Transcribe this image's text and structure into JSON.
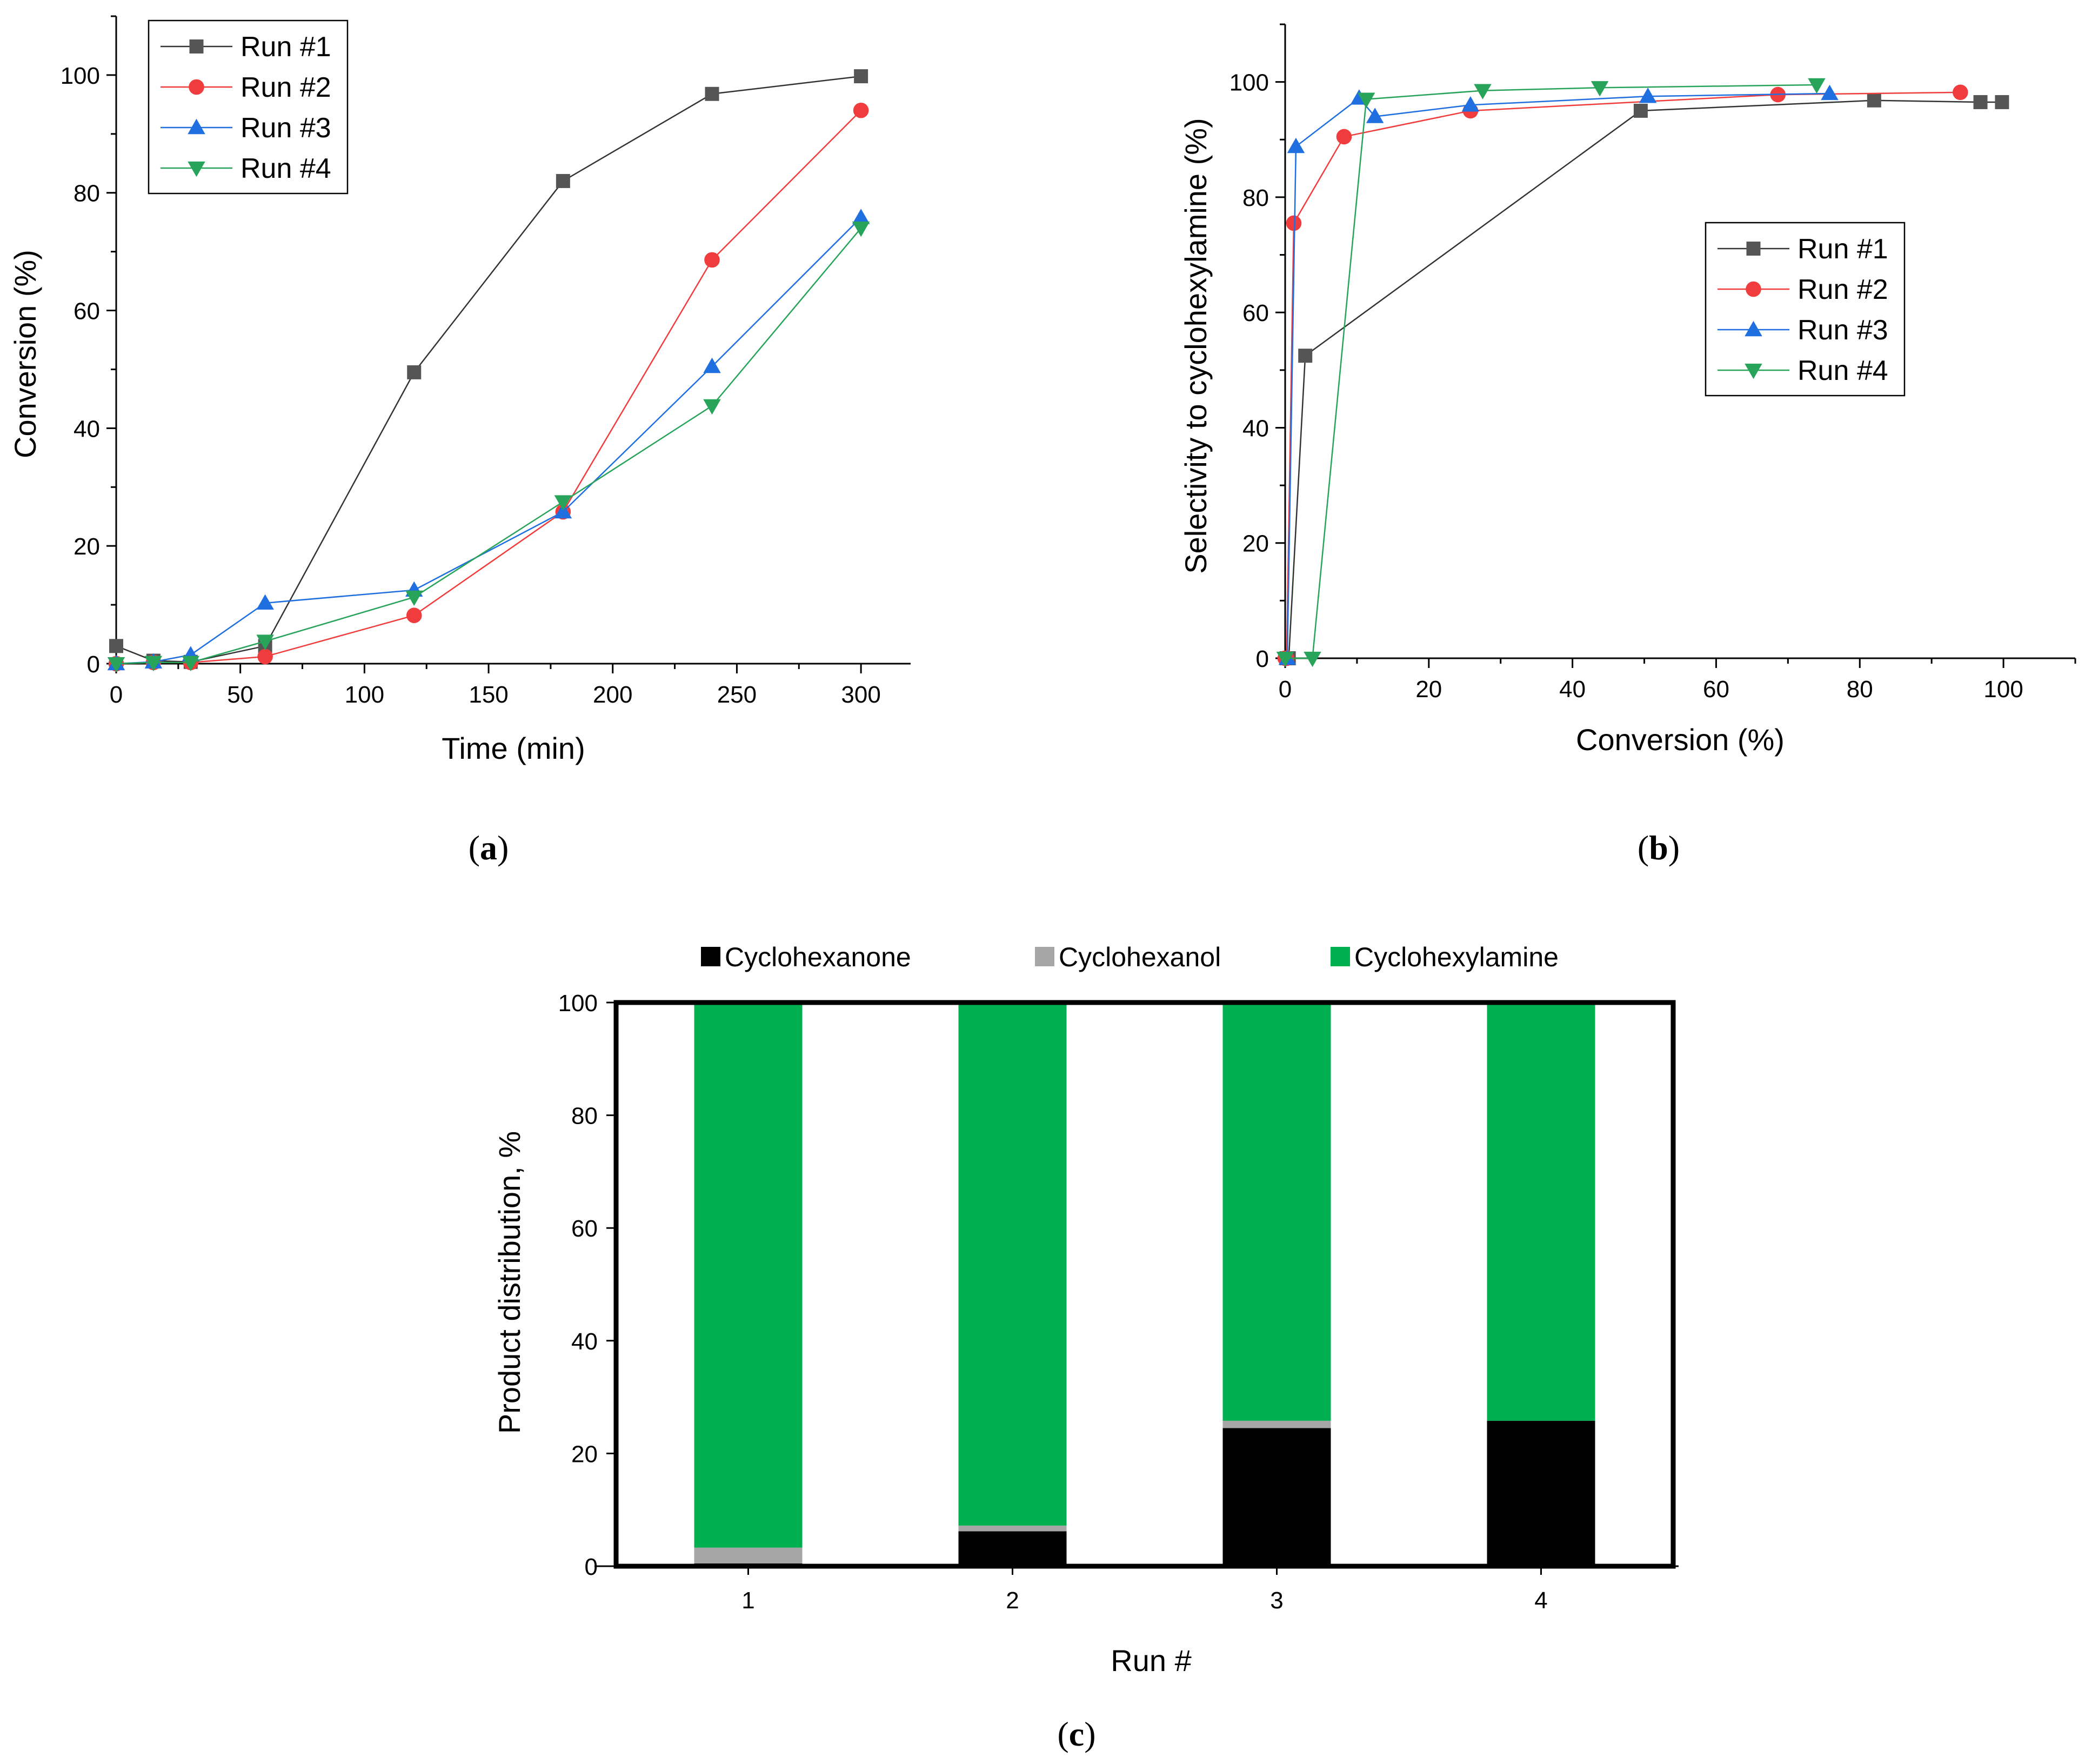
{
  "chart_data": [
    {
      "id": "a",
      "type": "line",
      "panel_label": "a",
      "xlabel": "Time (min)",
      "ylabel": "Conversion (%)",
      "xlim": [
        0,
        320
      ],
      "ylim": [
        0,
        110
      ],
      "xticks": [
        0,
        50,
        100,
        150,
        200,
        250,
        300
      ],
      "yticks": [
        0,
        20,
        40,
        60,
        80,
        100
      ],
      "legend_position": "top-left",
      "series": [
        {
          "name": "Run #1",
          "color": "#555555",
          "line": "#333333",
          "marker": "square",
          "x": [
            0,
            15,
            30,
            60,
            120,
            180,
            240,
            300
          ],
          "y": [
            3,
            0.5,
            0.3,
            3,
            49.5,
            82,
            96.8,
            99.8
          ]
        },
        {
          "name": "Run #2",
          "color": "#f03c3c",
          "line": "#f03c3c",
          "marker": "circle",
          "x": [
            0,
            15,
            30,
            60,
            120,
            180,
            240,
            300
          ],
          "y": [
            0,
            0.2,
            0.2,
            1.2,
            8.2,
            25.8,
            68.6,
            94
          ]
        },
        {
          "name": "Run #3",
          "color": "#1f6fe0",
          "line": "#1f6fe0",
          "marker": "triangle-up",
          "x": [
            0,
            15,
            30,
            60,
            120,
            180,
            240,
            300
          ],
          "y": [
            0,
            0.3,
            1.5,
            10.3,
            12.5,
            25.8,
            50.5,
            75.8
          ]
        },
        {
          "name": "Run #4",
          "color": "#27a35a",
          "line": "#27a35a",
          "marker": "triangle-down",
          "x": [
            0,
            15,
            30,
            60,
            120,
            180,
            240,
            300
          ],
          "y": [
            0,
            0.2,
            0.2,
            3.8,
            11.3,
            27.5,
            43.8,
            74
          ]
        }
      ]
    },
    {
      "id": "b",
      "type": "line",
      "panel_label": "b",
      "xlabel": "Conversion (%)",
      "ylabel": "Selectivity to cyclohexylamine (%)",
      "xlim": [
        0,
        110
      ],
      "ylim": [
        0,
        110
      ],
      "xticks": [
        0,
        20,
        40,
        60,
        80,
        100
      ],
      "yticks": [
        0,
        20,
        40,
        60,
        80,
        100
      ],
      "legend_position": "center-right",
      "series": [
        {
          "name": "Run #1",
          "color": "#555555",
          "line": "#333333",
          "marker": "square",
          "x": [
            0.2,
            0.5,
            2.8,
            49.5,
            82,
            96.8,
            99.8
          ],
          "y": [
            0,
            0,
            52.5,
            95,
            96.8,
            96.5,
            96.5
          ]
        },
        {
          "name": "Run #2",
          "color": "#f03c3c",
          "line": "#f03c3c",
          "marker": "circle",
          "x": [
            0,
            0.2,
            1.2,
            8.2,
            25.8,
            68.6,
            94
          ],
          "y": [
            0,
            0,
            75.5,
            90.5,
            95,
            97.8,
            98.2
          ]
        },
        {
          "name": "Run #3",
          "color": "#1f6fe0",
          "line": "#1f6fe0",
          "marker": "triangle-up",
          "x": [
            0.3,
            1.5,
            10.3,
            12.5,
            25.8,
            50.5,
            75.8
          ],
          "y": [
            0,
            88.8,
            97.2,
            94,
            96,
            97.5,
            98
          ]
        },
        {
          "name": "Run #4",
          "color": "#27a35a",
          "line": "#27a35a",
          "marker": "triangle-down",
          "x": [
            0,
            3.8,
            11.3,
            27.5,
            43.8,
            74
          ],
          "y": [
            0,
            0,
            97,
            98.5,
            99,
            99.5
          ]
        }
      ]
    },
    {
      "id": "c",
      "type": "bar",
      "stacked": true,
      "panel_label": "c",
      "xlabel": "Run #",
      "ylabel": "Product distribution, %",
      "ylim": [
        0,
        100
      ],
      "yticks": [
        0,
        20,
        40,
        60,
        80,
        100
      ],
      "categories": [
        "1",
        "2",
        "3",
        "4"
      ],
      "legend_position": "top",
      "series": [
        {
          "name": "Cyclohexanone",
          "color": "#000000",
          "values": [
            0.5,
            6.2,
            24.5,
            25.8
          ]
        },
        {
          "name": "Cyclohexanol",
          "color": "#a6a6a6",
          "values": [
            2.8,
            1.0,
            1.3,
            0
          ]
        },
        {
          "name": "Cyclohexylamine",
          "color": "#00b050",
          "values": [
            96.7,
            92.8,
            74.2,
            74.2
          ]
        }
      ]
    }
  ]
}
